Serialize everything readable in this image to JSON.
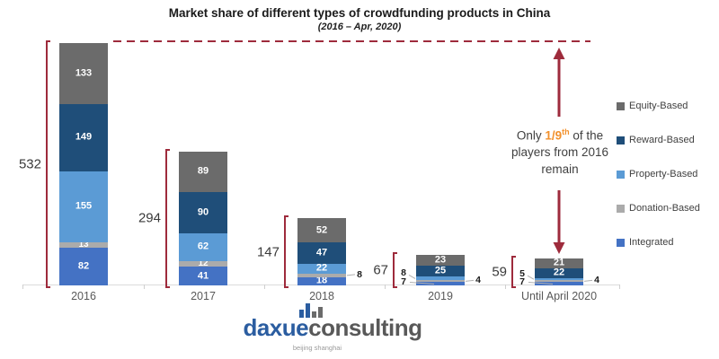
{
  "title": "Market share of different types of crowdfunding products in China",
  "subtitle": "(2016 – Apr, 2020)",
  "annotation": {
    "line1_prefix": "Only ",
    "line1_highlight": "1/9",
    "line1_sup": "th",
    "line1_suffix": " of the",
    "line2": "players from 2016",
    "line3": "remain"
  },
  "logo": {
    "name_blue": "daxue",
    "name_gray": "consulting",
    "tagline": "beijing shanghai"
  },
  "colors": {
    "accent_red": "#9E2B3C",
    "highlight_orange": "#F2912D",
    "logo_blue": "#2B5DA0",
    "logo_gray": "#595959"
  },
  "chart_data": {
    "type": "bar",
    "stacked": true,
    "title": "Market share of different types of crowdfunding products in China",
    "subtitle": "(2016 – Apr, 2020)",
    "categories": [
      "2016",
      "2017",
      "2018",
      "2019",
      "Until April 2020"
    ],
    "totals": [
      532,
      294,
      147,
      67,
      59
    ],
    "series": [
      {
        "name": "Equity-Based",
        "color": "#6B6B6B",
        "values": [
          133,
          89,
          52,
          23,
          21
        ]
      },
      {
        "name": "Reward-Based",
        "color": "#1F4E79",
        "values": [
          149,
          90,
          47,
          25,
          22
        ]
      },
      {
        "name": "Property-Based",
        "color": "#5B9BD5",
        "values": [
          155,
          62,
          22,
          8,
          5
        ]
      },
      {
        "name": "Donation-Based",
        "color": "#ABABAB",
        "values": [
          13,
          12,
          8,
          4,
          4
        ]
      },
      {
        "name": "Integrated",
        "color": "#4472C4",
        "values": [
          82,
          41,
          18,
          7,
          7
        ]
      }
    ],
    "legend_position": "right",
    "grid": false,
    "ylim": [
      0,
      532
    ],
    "callout_sides": {
      "Property-Based": "left",
      "Donation-Based": "right",
      "Integrated": "below"
    }
  }
}
